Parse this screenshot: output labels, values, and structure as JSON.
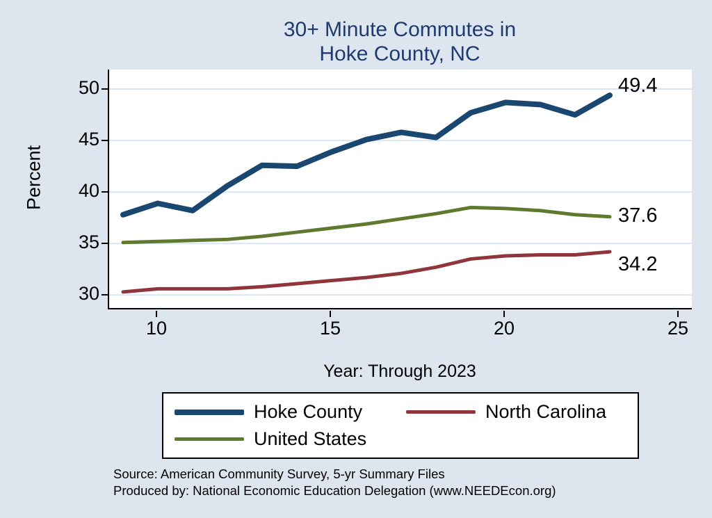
{
  "colors": {
    "background": "#dde6ef",
    "gridline": "#d9e5f2",
    "axis": "#000000",
    "title": "#1f3a6e",
    "plot_background": "#ffffff"
  },
  "chart_data": {
    "type": "line",
    "title_line1": "30+ Minute Commutes in",
    "title_line2": "Hoke County, NC",
    "xlabel": "Year: Through 2023",
    "ylabel": "Percent",
    "x": [
      9,
      10,
      11,
      12,
      13,
      14,
      15,
      16,
      17,
      18,
      19,
      20,
      21,
      22,
      23
    ],
    "series": [
      {
        "name": "Hoke County",
        "color": "#1a476f",
        "line_width": 8,
        "values": [
          37.8,
          38.9,
          38.2,
          40.6,
          42.6,
          42.5,
          43.9,
          45.1,
          45.8,
          45.3,
          47.7,
          48.7,
          48.5,
          47.5,
          49.4
        ],
        "end_label": "49.4",
        "label_dy": -12
      },
      {
        "name": "North Carolina",
        "color": "#90353b",
        "line_width": 5,
        "values": [
          30.3,
          30.6,
          30.6,
          30.6,
          30.8,
          31.1,
          31.4,
          31.7,
          32.1,
          32.7,
          33.5,
          33.8,
          33.9,
          33.9,
          34.2
        ],
        "end_label": "34.2",
        "label_dy": 20
      },
      {
        "name": "United States",
        "color": "#5f7a2e",
        "line_width": 5,
        "values": [
          35.1,
          35.2,
          35.3,
          35.4,
          35.7,
          36.1,
          36.5,
          36.9,
          37.4,
          37.9,
          38.5,
          38.4,
          38.2,
          37.8,
          37.6
        ],
        "end_label": "37.6",
        "label_dy": 0
      }
    ],
    "xticks": [
      10,
      15,
      20,
      25
    ],
    "yticks": [
      30,
      35,
      40,
      45,
      50
    ],
    "xlim": [
      8.6,
      25.4
    ],
    "ylim": [
      28.6,
      51.9
    ],
    "grid": true,
    "legend_position": "bottom",
    "legend_order": [
      0,
      1,
      2
    ]
  },
  "source": {
    "line1": "Source: American Community Survey, 5-yr Summary Files",
    "line2": "Produced by: National Economic Education Delegation (www.NEEDEcon.org)"
  }
}
